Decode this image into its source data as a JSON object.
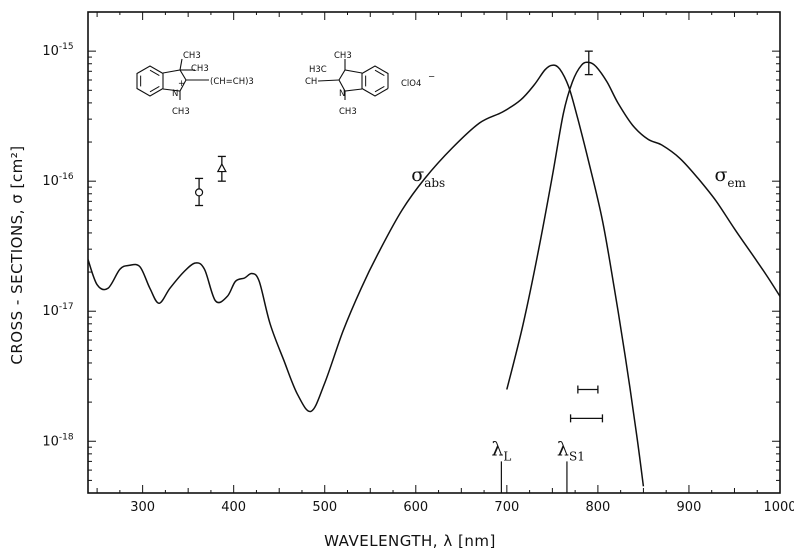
{
  "chart_data": {
    "type": "line",
    "title": "",
    "xlabel": "WAVELENGTH, λ [nm]",
    "ylabel": "CROSS - SECTIONS, σ [cm²]",
    "xlim": [
      240,
      1000
    ],
    "ylim": [
      4e-19,
      2e-15
    ],
    "yscale": "log",
    "grid": false,
    "x_ticks": [
      300,
      400,
      500,
      600,
      700,
      800,
      900,
      1000
    ],
    "x_tick_labels": [
      "300",
      "400",
      "500",
      "600",
      "700",
      "800",
      "900",
      "1000"
    ],
    "y_ticks": [
      1e-18,
      1e-17,
      1e-16,
      1e-15
    ],
    "y_tick_labels": [
      {
        "base": "10",
        "exp": "-18"
      },
      {
        "base": "10",
        "exp": "-17"
      },
      {
        "base": "10",
        "exp": "-16"
      },
      {
        "base": "10",
        "exp": "-15"
      }
    ],
    "series": [
      {
        "name": "σabs",
        "label_base": "σ",
        "label_sub": "abs",
        "points": [
          [
            240,
            2.5e-17
          ],
          [
            250,
            1.6e-17
          ],
          [
            262,
            1.5e-17
          ],
          [
            275,
            2.1e-17
          ],
          [
            285,
            2.25e-17
          ],
          [
            297,
            2.2e-17
          ],
          [
            308,
            1.5e-17
          ],
          [
            318,
            1.15e-17
          ],
          [
            330,
            1.5e-17
          ],
          [
            345,
            2e-17
          ],
          [
            358,
            2.35e-17
          ],
          [
            368,
            2.1e-17
          ],
          [
            380,
            1.2e-17
          ],
          [
            393,
            1.3e-17
          ],
          [
            402,
            1.7e-17
          ],
          [
            412,
            1.8e-17
          ],
          [
            420,
            1.95e-17
          ],
          [
            428,
            1.7e-17
          ],
          [
            440,
            8e-18
          ],
          [
            455,
            4.2e-18
          ],
          [
            470,
            2.3e-18
          ],
          [
            485,
            1.7e-18
          ],
          [
            500,
            2.8e-18
          ],
          [
            520,
            7e-18
          ],
          [
            540,
            1.5e-17
          ],
          [
            560,
            2.9e-17
          ],
          [
            585,
            6e-17
          ],
          [
            610,
            1.05e-16
          ],
          [
            640,
            1.8e-16
          ],
          [
            670,
            2.8e-16
          ],
          [
            695,
            3.4e-16
          ],
          [
            715,
            4.2e-16
          ],
          [
            730,
            5.5e-16
          ],
          [
            742,
            7.2e-16
          ],
          [
            750,
            7.8e-16
          ],
          [
            758,
            7.3e-16
          ],
          [
            768,
            5.3e-16
          ],
          [
            778,
            3e-16
          ],
          [
            790,
            1.4e-16
          ],
          [
            805,
            5e-17
          ],
          [
            818,
            1.5e-17
          ],
          [
            830,
            4.5e-18
          ],
          [
            842,
            1.2e-18
          ],
          [
            850,
            4.5e-19
          ]
        ]
      },
      {
        "name": "σem",
        "label_base": "σ",
        "label_sub": "em",
        "points": [
          [
            700,
            2.5e-18
          ],
          [
            718,
            8e-18
          ],
          [
            735,
            3e-17
          ],
          [
            750,
            1.1e-16
          ],
          [
            762,
            3.3e-16
          ],
          [
            772,
            5.8e-16
          ],
          [
            782,
            7.8e-16
          ],
          [
            790,
            8.2e-16
          ],
          [
            798,
            7.6e-16
          ],
          [
            810,
            5.8e-16
          ],
          [
            822,
            4e-16
          ],
          [
            838,
            2.7e-16
          ],
          [
            855,
            2.1e-16
          ],
          [
            870,
            1.9e-16
          ],
          [
            890,
            1.5e-16
          ],
          [
            910,
            1.05e-16
          ],
          [
            930,
            7e-17
          ],
          [
            950,
            4.3e-17
          ],
          [
            970,
            2.7e-17
          ],
          [
            985,
            1.9e-17
          ],
          [
            1000,
            1.3e-17
          ]
        ]
      }
    ],
    "error_bars": [
      {
        "x": 362,
        "y": 8.2e-17,
        "low": 6.5e-17,
        "high": 1.05e-16,
        "marker": "circle"
      },
      {
        "x": 387,
        "y": 1.25e-16,
        "low": 1e-16,
        "high": 1.55e-16,
        "marker": "triangle"
      },
      {
        "x": 790,
        "y": 8.2e-16,
        "low": 6.6e-16,
        "high": 1e-15,
        "marker": "none"
      }
    ],
    "width_bars": [
      {
        "x_from": 778,
        "x_to": 800,
        "y": 2.5e-18
      },
      {
        "x_from": 770,
        "x_to": 805,
        "y": 1.5e-18
      }
    ],
    "markers": [
      {
        "label_base": "λ",
        "label_sub": "L",
        "x": 694,
        "y_top": 7e-19
      },
      {
        "label_base": "λ",
        "label_sub": "S1",
        "x": 766,
        "y_top": 7e-19
      }
    ],
    "molecule": {
      "labels": [
        "CH3",
        "CH3",
        "H3C",
        "CH3",
        "N",
        "+",
        "N",
        "CH3",
        "CH3",
        "(CH=CH)3",
        "CH",
        "ClO4",
        "−"
      ]
    }
  }
}
